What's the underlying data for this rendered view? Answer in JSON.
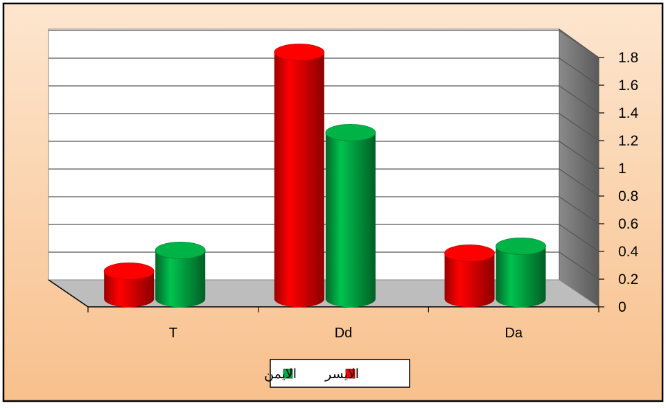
{
  "chart_data": {
    "type": "bar",
    "style": "3d-cylinder",
    "categories": [
      "T",
      "Dd",
      "Da"
    ],
    "series": [
      {
        "name": "الايسر",
        "color": "#ff0000",
        "values": [
          0.2,
          1.78,
          0.33
        ]
      },
      {
        "name": "الايمن",
        "color": "#00aa44",
        "values": [
          0.35,
          1.2,
          0.38
        ]
      }
    ],
    "yticks": [
      "0",
      "0.2",
      "0.4",
      "0.6",
      "0.8",
      "1",
      "1.2",
      "1.4",
      "1.6",
      "1.8"
    ],
    "ylim": [
      0,
      1.8
    ],
    "y_axis_side": "right",
    "grid": true,
    "legend_position": "bottom",
    "colors": {
      "background_top": "#fde6cf",
      "background_bottom": "#f8c08c",
      "wall": "#ffffff",
      "side_wall": "#6e6e6e",
      "floor": "#bdbdbd"
    }
  }
}
